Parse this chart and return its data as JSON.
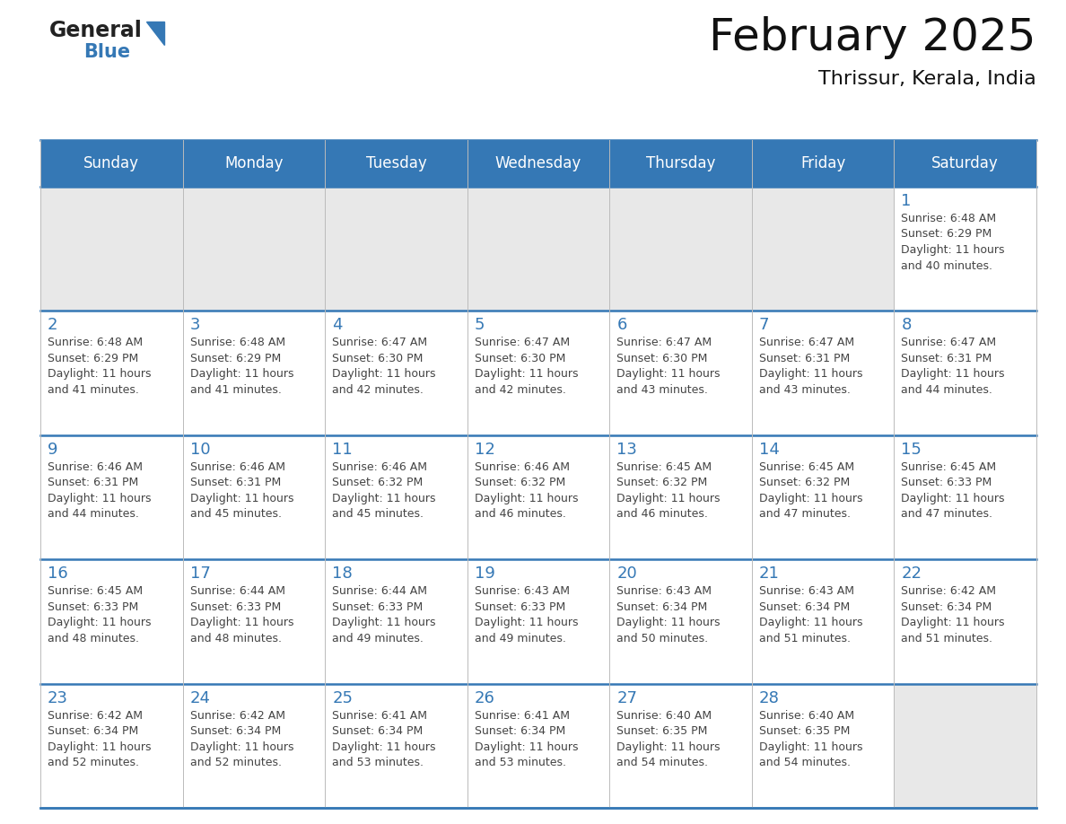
{
  "title": "February 2025",
  "subtitle": "Thrissur, Kerala, India",
  "header_bg_color": "#3578b5",
  "header_text_color": "#ffffff",
  "day_names": [
    "Sunday",
    "Monday",
    "Tuesday",
    "Wednesday",
    "Thursday",
    "Friday",
    "Saturday"
  ],
  "bg_color": "#ffffff",
  "empty_cell_bg": "#e8e8e8",
  "filled_cell_bg": "#ffffff",
  "date_color": "#3578b5",
  "text_color": "#444444",
  "border_color": "#3578b5",
  "calendar": [
    [
      null,
      null,
      null,
      null,
      null,
      null,
      {
        "day": 1,
        "sunrise": "6:48 AM",
        "sunset": "6:29 PM",
        "daylight": "11 hours and 40 minutes."
      }
    ],
    [
      {
        "day": 2,
        "sunrise": "6:48 AM",
        "sunset": "6:29 PM",
        "daylight": "11 hours and 41 minutes."
      },
      {
        "day": 3,
        "sunrise": "6:48 AM",
        "sunset": "6:29 PM",
        "daylight": "11 hours and 41 minutes."
      },
      {
        "day": 4,
        "sunrise": "6:47 AM",
        "sunset": "6:30 PM",
        "daylight": "11 hours and 42 minutes."
      },
      {
        "day": 5,
        "sunrise": "6:47 AM",
        "sunset": "6:30 PM",
        "daylight": "11 hours and 42 minutes."
      },
      {
        "day": 6,
        "sunrise": "6:47 AM",
        "sunset": "6:30 PM",
        "daylight": "11 hours and 43 minutes."
      },
      {
        "day": 7,
        "sunrise": "6:47 AM",
        "sunset": "6:31 PM",
        "daylight": "11 hours and 43 minutes."
      },
      {
        "day": 8,
        "sunrise": "6:47 AM",
        "sunset": "6:31 PM",
        "daylight": "11 hours and 44 minutes."
      }
    ],
    [
      {
        "day": 9,
        "sunrise": "6:46 AM",
        "sunset": "6:31 PM",
        "daylight": "11 hours and 44 minutes."
      },
      {
        "day": 10,
        "sunrise": "6:46 AM",
        "sunset": "6:31 PM",
        "daylight": "11 hours and 45 minutes."
      },
      {
        "day": 11,
        "sunrise": "6:46 AM",
        "sunset": "6:32 PM",
        "daylight": "11 hours and 45 minutes."
      },
      {
        "day": 12,
        "sunrise": "6:46 AM",
        "sunset": "6:32 PM",
        "daylight": "11 hours and 46 minutes."
      },
      {
        "day": 13,
        "sunrise": "6:45 AM",
        "sunset": "6:32 PM",
        "daylight": "11 hours and 46 minutes."
      },
      {
        "day": 14,
        "sunrise": "6:45 AM",
        "sunset": "6:32 PM",
        "daylight": "11 hours and 47 minutes."
      },
      {
        "day": 15,
        "sunrise": "6:45 AM",
        "sunset": "6:33 PM",
        "daylight": "11 hours and 47 minutes."
      }
    ],
    [
      {
        "day": 16,
        "sunrise": "6:45 AM",
        "sunset": "6:33 PM",
        "daylight": "11 hours and 48 minutes."
      },
      {
        "day": 17,
        "sunrise": "6:44 AM",
        "sunset": "6:33 PM",
        "daylight": "11 hours and 48 minutes."
      },
      {
        "day": 18,
        "sunrise": "6:44 AM",
        "sunset": "6:33 PM",
        "daylight": "11 hours and 49 minutes."
      },
      {
        "day": 19,
        "sunrise": "6:43 AM",
        "sunset": "6:33 PM",
        "daylight": "11 hours and 49 minutes."
      },
      {
        "day": 20,
        "sunrise": "6:43 AM",
        "sunset": "6:34 PM",
        "daylight": "11 hours and 50 minutes."
      },
      {
        "day": 21,
        "sunrise": "6:43 AM",
        "sunset": "6:34 PM",
        "daylight": "11 hours and 51 minutes."
      },
      {
        "day": 22,
        "sunrise": "6:42 AM",
        "sunset": "6:34 PM",
        "daylight": "11 hours and 51 minutes."
      }
    ],
    [
      {
        "day": 23,
        "sunrise": "6:42 AM",
        "sunset": "6:34 PM",
        "daylight": "11 hours and 52 minutes."
      },
      {
        "day": 24,
        "sunrise": "6:42 AM",
        "sunset": "6:34 PM",
        "daylight": "11 hours and 52 minutes."
      },
      {
        "day": 25,
        "sunrise": "6:41 AM",
        "sunset": "6:34 PM",
        "daylight": "11 hours and 53 minutes."
      },
      {
        "day": 26,
        "sunrise": "6:41 AM",
        "sunset": "6:34 PM",
        "daylight": "11 hours and 53 minutes."
      },
      {
        "day": 27,
        "sunrise": "6:40 AM",
        "sunset": "6:35 PM",
        "daylight": "11 hours and 54 minutes."
      },
      {
        "day": 28,
        "sunrise": "6:40 AM",
        "sunset": "6:35 PM",
        "daylight": "11 hours and 54 minutes."
      },
      null
    ]
  ]
}
